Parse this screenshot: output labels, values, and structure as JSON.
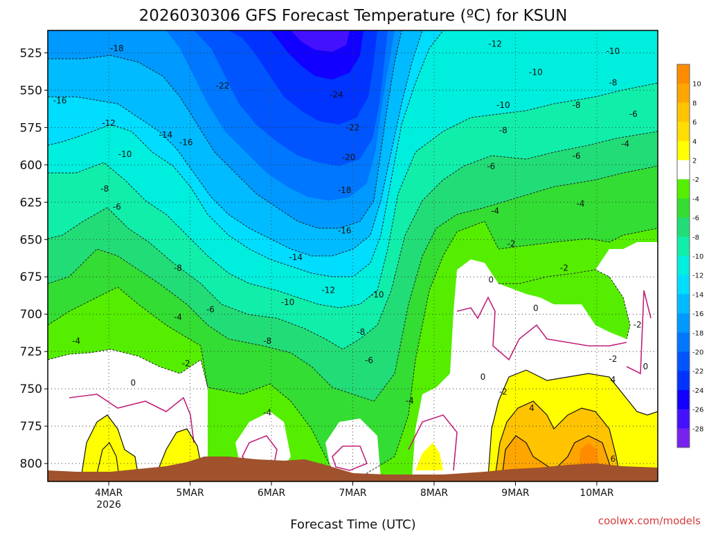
{
  "chart_data": {
    "type": "heatmap",
    "title": "2026030306 GFS Forecast Temperature (ºC) for KSUN",
    "xlabel": "Forecast Time (UTC)",
    "ylabel": "",
    "credit": "coolwx.com/models",
    "y_axis": {
      "ticks": [
        "525",
        "550",
        "575",
        "600",
        "625",
        "650",
        "675",
        "700",
        "725",
        "750",
        "775",
        "800"
      ],
      "range": [
        510,
        812
      ],
      "inverted": true
    },
    "x_axis": {
      "ticks": [
        "4MAR",
        "5MAR",
        "6MAR",
        "7MAR",
        "8MAR",
        "9MAR",
        "10MAR"
      ],
      "first_tick_sublabel": "2026",
      "range_days": [
        3.25,
        10.75
      ]
    },
    "colorbar": {
      "labels": [
        "10",
        "8",
        "6",
        "4",
        "2",
        "-2",
        "-4",
        "-6",
        "-8",
        "-10",
        "-12",
        "-14",
        "-16",
        "-18",
        "-20",
        "-22",
        "-24",
        "-26",
        "-28"
      ],
      "colors": [
        "#ff8c00",
        "#ffa500",
        "#ffc300",
        "#ffdd00",
        "#ffff00",
        "#ffffff",
        "#55ee00",
        "#33dd33",
        "#22dd77",
        "#11eeaa",
        "#00eedd",
        "#00ddff",
        "#00bbff",
        "#0099ff",
        "#0077ff",
        "#0055ff",
        "#0033ff",
        "#1100ff",
        "#4411ff",
        "#7722ee"
      ]
    },
    "contour_labels": [
      {
        "text": "-18",
        "day": 4.1,
        "p": 522
      },
      {
        "text": "-16",
        "day": 3.4,
        "p": 557
      },
      {
        "text": "-12",
        "day": 4.0,
        "p": 572
      },
      {
        "text": "-14",
        "day": 4.7,
        "p": 580
      },
      {
        "text": "-16",
        "day": 4.95,
        "p": 585
      },
      {
        "text": "-10",
        "day": 4.2,
        "p": 593
      },
      {
        "text": "-22",
        "day": 5.4,
        "p": 547
      },
      {
        "text": "-24",
        "day": 6.8,
        "p": 553
      },
      {
        "text": "-22",
        "day": 7.0,
        "p": 575
      },
      {
        "text": "-20",
        "day": 6.95,
        "p": 595
      },
      {
        "text": "-18",
        "day": 6.9,
        "p": 617
      },
      {
        "text": "-16",
        "day": 6.9,
        "p": 644
      },
      {
        "text": "-14",
        "day": 6.3,
        "p": 662
      },
      {
        "text": "-12",
        "day": 6.7,
        "p": 684
      },
      {
        "text": "-10",
        "day": 7.3,
        "p": 687
      },
      {
        "text": "-10",
        "day": 6.2,
        "p": 692
      },
      {
        "text": "-8",
        "day": 3.95,
        "p": 616
      },
      {
        "text": "-6",
        "day": 4.1,
        "p": 628
      },
      {
        "text": "-8",
        "day": 4.85,
        "p": 669
      },
      {
        "text": "-6",
        "day": 5.25,
        "p": 697
      },
      {
        "text": "-4",
        "day": 3.6,
        "p": 718
      },
      {
        "text": "-4",
        "day": 4.85,
        "p": 702
      },
      {
        "text": "-2",
        "day": 4.95,
        "p": 733
      },
      {
        "text": "0",
        "day": 4.3,
        "p": 746
      },
      {
        "text": "-8",
        "day": 5.95,
        "p": 718
      },
      {
        "text": "-8",
        "day": 7.1,
        "p": 712
      },
      {
        "text": "-6",
        "day": 7.2,
        "p": 731
      },
      {
        "text": "-4",
        "day": 5.95,
        "p": 766
      },
      {
        "text": "-4",
        "day": 7.7,
        "p": 758
      },
      {
        "text": "-12",
        "day": 8.75,
        "p": 519
      },
      {
        "text": "-10",
        "day": 9.25,
        "p": 538
      },
      {
        "text": "-10",
        "day": 10.2,
        "p": 524
      },
      {
        "text": "-8",
        "day": 10.2,
        "p": 545
      },
      {
        "text": "-10",
        "day": 8.85,
        "p": 560
      },
      {
        "text": "-8",
        "day": 9.75,
        "p": 560
      },
      {
        "text": "-6",
        "day": 10.45,
        "p": 566
      },
      {
        "text": "-8",
        "day": 8.85,
        "p": 577
      },
      {
        "text": "-4",
        "day": 10.35,
        "p": 586
      },
      {
        "text": "-6",
        "day": 8.7,
        "p": 601
      },
      {
        "text": "-6",
        "day": 9.75,
        "p": 594
      },
      {
        "text": "-4",
        "day": 8.75,
        "p": 631
      },
      {
        "text": "-4",
        "day": 9.8,
        "p": 626
      },
      {
        "text": "-2",
        "day": 8.95,
        "p": 653
      },
      {
        "text": "0",
        "day": 8.7,
        "p": 677
      },
      {
        "text": "-2",
        "day": 9.6,
        "p": 669
      },
      {
        "text": "0",
        "day": 9.25,
        "p": 696
      },
      {
        "text": "-2",
        "day": 10.5,
        "p": 707
      },
      {
        "text": "-2",
        "day": 10.2,
        "p": 730
      },
      {
        "text": "0",
        "day": 10.6,
        "p": 735
      },
      {
        "text": "0",
        "day": 8.6,
        "p": 742
      },
      {
        "text": "-2",
        "day": 8.85,
        "p": 752
      },
      {
        "text": "4",
        "day": 9.2,
        "p": 763
      },
      {
        "text": "4",
        "day": 10.2,
        "p": 744
      },
      {
        "text": "6",
        "day": 10.2,
        "p": 797
      }
    ]
  }
}
